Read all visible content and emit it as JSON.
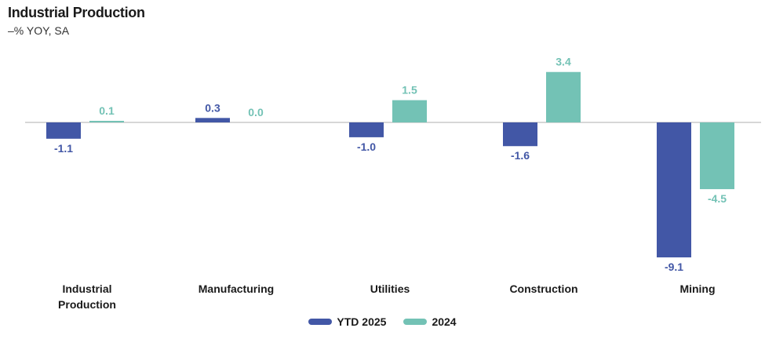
{
  "title": "Industrial Production",
  "subtitle": "–% YOY, SA",
  "colors": {
    "ytd": "#4257a6",
    "prior": "#73c2b5",
    "axis": "#bfbfbf",
    "cat_text": "#1a1a1a"
  },
  "legend": [
    {
      "label": "YTD 2025",
      "color": "#4257a6"
    },
    {
      "label": "2024",
      "color": "#73c2b5"
    }
  ],
  "chart_data": {
    "type": "bar",
    "title": "Industrial Production",
    "subtitle": "–% YOY, SA",
    "categories": [
      [
        "Industrial",
        "Production"
      ],
      [
        "Manufacturing"
      ],
      [
        "Utilities"
      ],
      [
        "Construction"
      ],
      [
        "Mining"
      ]
    ],
    "series": [
      {
        "name": "YTD 2025",
        "values": [
          -1.1,
          0.3,
          -1.0,
          -1.6,
          -9.1
        ],
        "labels": [
          "-1.1",
          "0.3",
          "-1.0",
          "-1.6",
          "-9.1"
        ]
      },
      {
        "name": "2024",
        "values": [
          0.1,
          0.0,
          1.5,
          3.4,
          -4.5
        ],
        "labels": [
          "0.1",
          "0.0",
          "1.5",
          "3.4",
          "-4.5"
        ]
      }
    ],
    "ylim": [
      -9.1,
      3.4
    ],
    "legend_position": "bottom-center",
    "grid": false
  }
}
